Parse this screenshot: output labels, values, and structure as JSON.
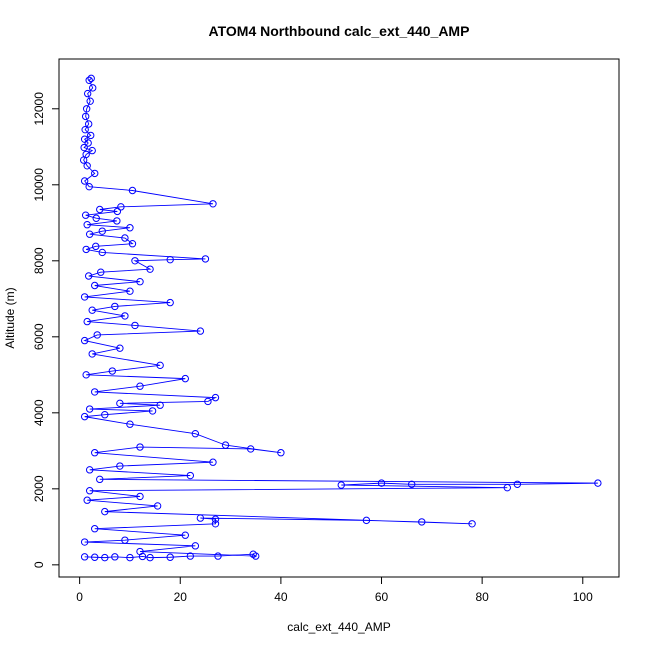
{
  "chart_data": {
    "type": "line",
    "title": "ATOM4 Northbound calc_ext_440_AMP",
    "xlabel": "calc_ext_440_AMP",
    "ylabel": "Altitude (m)",
    "xlim": [
      -4.1,
      107.2
    ],
    "ylim": [
      -320,
      13310
    ],
    "x_ticks": [
      0,
      20,
      40,
      60,
      80,
      100
    ],
    "y_ticks": [
      0,
      2000,
      4000,
      6000,
      8000,
      10000,
      12000
    ],
    "grid": false,
    "legend": "none",
    "series": [
      {
        "marker": "open-circle",
        "line": true,
        "color": "#0000ff",
        "points": [
          [
            2.3,
            12800
          ],
          [
            1.9,
            12750
          ],
          [
            2.6,
            12550
          ],
          [
            1.6,
            12400
          ],
          [
            2.1,
            12200
          ],
          [
            1.4,
            12000
          ],
          [
            1.2,
            11800
          ],
          [
            1.8,
            11600
          ],
          [
            1.1,
            11450
          ],
          [
            2.2,
            11300
          ],
          [
            1.0,
            11200
          ],
          [
            1.7,
            11100
          ],
          [
            0.9,
            10980
          ],
          [
            2.5,
            10900
          ],
          [
            1.3,
            10800
          ],
          [
            0.8,
            10650
          ],
          [
            1.5,
            10500
          ],
          [
            3.0,
            10300
          ],
          [
            1.0,
            10100
          ],
          [
            1.9,
            9950
          ],
          [
            10.5,
            9850
          ],
          [
            26.5,
            9500
          ],
          [
            8.2,
            9420
          ],
          [
            4.0,
            9350
          ],
          [
            7.5,
            9300
          ],
          [
            1.2,
            9200
          ],
          [
            3.3,
            9120
          ],
          [
            7.4,
            9050
          ],
          [
            1.5,
            8950
          ],
          [
            10.0,
            8870
          ],
          [
            4.5,
            8780
          ],
          [
            2.0,
            8700
          ],
          [
            9.0,
            8600
          ],
          [
            10.5,
            8450
          ],
          [
            3.2,
            8380
          ],
          [
            1.3,
            8300
          ],
          [
            4.5,
            8220
          ],
          [
            25.0,
            8050
          ],
          [
            18.0,
            8030
          ],
          [
            11.0,
            8000
          ],
          [
            14.0,
            7780
          ],
          [
            4.2,
            7700
          ],
          [
            1.8,
            7600
          ],
          [
            12.0,
            7450
          ],
          [
            3.0,
            7350
          ],
          [
            10.0,
            7200
          ],
          [
            1.0,
            7050
          ],
          [
            18.0,
            6900
          ],
          [
            7.0,
            6800
          ],
          [
            2.5,
            6700
          ],
          [
            9.0,
            6550
          ],
          [
            1.5,
            6400
          ],
          [
            11.0,
            6300
          ],
          [
            24.0,
            6150
          ],
          [
            3.5,
            6050
          ],
          [
            1.0,
            5900
          ],
          [
            8.0,
            5700
          ],
          [
            2.5,
            5550
          ],
          [
            16.0,
            5250
          ],
          [
            6.5,
            5100
          ],
          [
            1.3,
            5000
          ],
          [
            21.0,
            4900
          ],
          [
            12.0,
            4700
          ],
          [
            3.0,
            4550
          ],
          [
            27.0,
            4400
          ],
          [
            25.5,
            4300
          ],
          [
            8.0,
            4250
          ],
          [
            16.0,
            4200
          ],
          [
            2.0,
            4100
          ],
          [
            14.5,
            4050
          ],
          [
            5.0,
            3950
          ],
          [
            1.0,
            3900
          ],
          [
            10.0,
            3700
          ],
          [
            23.0,
            3450
          ],
          [
            29.0,
            3150
          ],
          [
            40.0,
            2950
          ],
          [
            34.0,
            3050
          ],
          [
            12.0,
            3100
          ],
          [
            3.0,
            2950
          ],
          [
            26.5,
            2700
          ],
          [
            8.0,
            2600
          ],
          [
            2.0,
            2500
          ],
          [
            22.0,
            2350
          ],
          [
            4.0,
            2250
          ],
          [
            103.0,
            2150
          ],
          [
            87.0,
            2120
          ],
          [
            66.0,
            2120
          ],
          [
            60.0,
            2150
          ],
          [
            52.0,
            2100
          ],
          [
            85.0,
            2030
          ],
          [
            2.0,
            1950
          ],
          [
            12.0,
            1800
          ],
          [
            1.5,
            1700
          ],
          [
            15.5,
            1550
          ],
          [
            5.0,
            1400
          ],
          [
            78.0,
            1080
          ],
          [
            68.0,
            1130
          ],
          [
            57.0,
            1170
          ],
          [
            24.0,
            1230
          ],
          [
            27.0,
            1200
          ],
          [
            27.0,
            1080
          ],
          [
            3.0,
            950
          ],
          [
            21.0,
            780
          ],
          [
            9.0,
            650
          ],
          [
            1.0,
            600
          ],
          [
            23.0,
            500
          ],
          [
            12.0,
            350
          ],
          [
            35.0,
            230
          ],
          [
            34.5,
            280
          ],
          [
            27.5,
            230
          ],
          [
            22.0,
            230
          ],
          [
            18.0,
            200
          ],
          [
            14.0,
            190
          ],
          [
            12.5,
            220
          ],
          [
            10.0,
            190
          ],
          [
            7.0,
            210
          ],
          [
            5.0,
            190
          ],
          [
            3.0,
            200
          ],
          [
            1.0,
            210
          ]
        ]
      }
    ]
  }
}
